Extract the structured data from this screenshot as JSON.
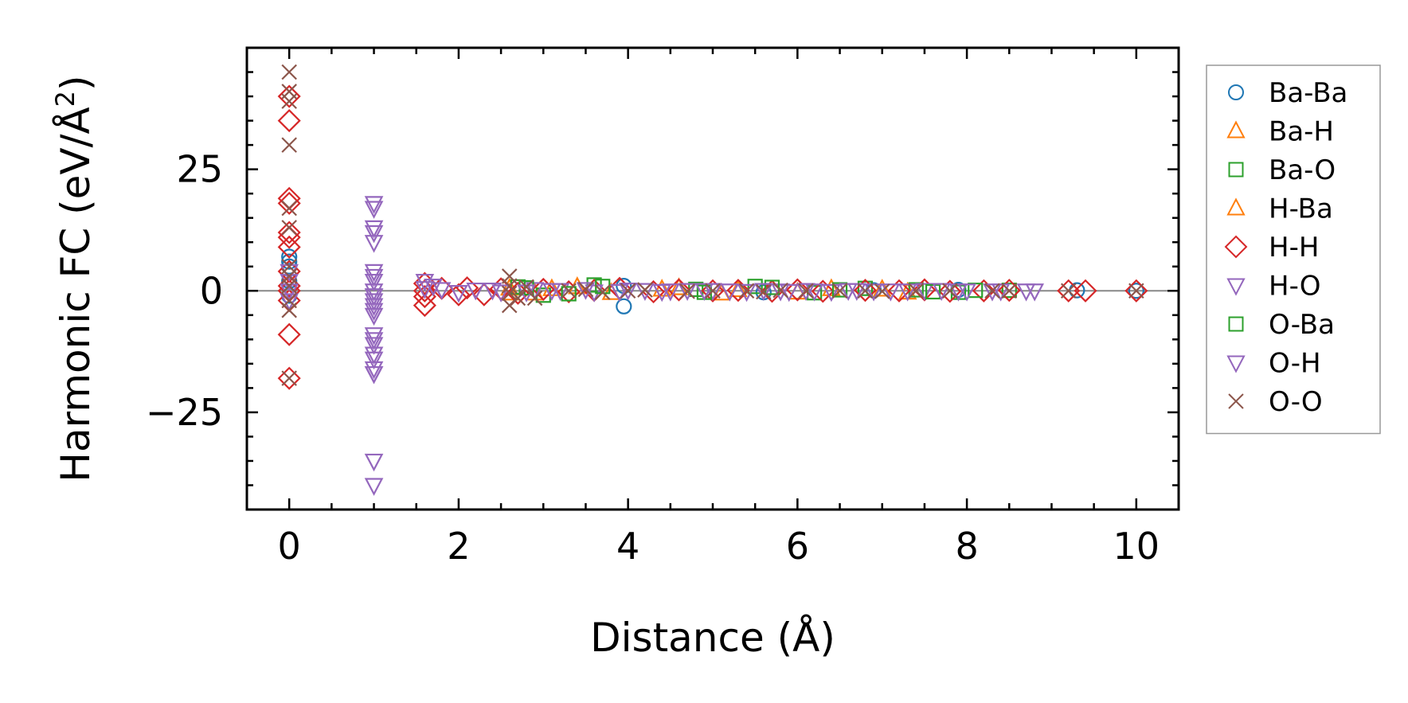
{
  "chart_data": {
    "type": "scatter",
    "title": "",
    "xlabel": "Distance (Å)",
    "ylabel_prefix": "Harmonic FC (eV/Å",
    "ylabel_sup": "2",
    "ylabel_suffix": ")",
    "xlim": [
      -0.5,
      10.5
    ],
    "ylim": [
      -45,
      50
    ],
    "xticks": [
      0,
      2,
      4,
      6,
      8,
      10
    ],
    "xtick_labels": [
      "0",
      "2",
      "4",
      "6",
      "8",
      "10"
    ],
    "yticks": [
      -25,
      0,
      25
    ],
    "ytick_labels": [
      "−25",
      "0",
      "25"
    ],
    "grid": false,
    "zero_line": true,
    "legend_position": "outside-right",
    "series": [
      {
        "name": "Ba-Ba",
        "marker": "circle",
        "color": "#1f77b4",
        "points": [
          [
            0,
            7
          ],
          [
            0,
            6
          ],
          [
            0,
            5
          ],
          [
            0,
            2
          ],
          [
            0,
            -1
          ],
          [
            3.95,
            1
          ],
          [
            3.95,
            -3.2
          ],
          [
            5.6,
            -0.3
          ],
          [
            6.9,
            0.1
          ],
          [
            7.9,
            0.2
          ],
          [
            9.3,
            0.1
          ],
          [
            10,
            0
          ]
        ]
      },
      {
        "name": "Ba-H",
        "marker": "triangle-up",
        "color": "#ff7f0e",
        "points": [
          [
            2.6,
            0.5
          ],
          [
            2.9,
            -0.5
          ],
          [
            3.4,
            0.8
          ],
          [
            4.4,
            0.3
          ],
          [
            5.1,
            -0.5
          ],
          [
            6.4,
            0.4
          ],
          [
            7.3,
            -0.3
          ]
        ]
      },
      {
        "name": "Ba-O",
        "marker": "square",
        "color": "#2ca02c",
        "points": [
          [
            2.7,
            0.8
          ],
          [
            3.0,
            -0.9
          ],
          [
            3.6,
            1.2
          ],
          [
            4.8,
            0.3
          ],
          [
            5.5,
            0.9
          ],
          [
            6.2,
            -0.4
          ],
          [
            6.8,
            0.5
          ],
          [
            7.4,
            0.2
          ],
          [
            7.9,
            -0.3
          ],
          [
            8.5,
            0.1
          ]
        ]
      },
      {
        "name": "H-Ba",
        "marker": "triangle-up",
        "color": "#ff7f0e",
        "points": [
          [
            2.6,
            -0.5
          ],
          [
            3.1,
            0.4
          ],
          [
            3.8,
            -0.4
          ],
          [
            4.6,
            0.6
          ],
          [
            5.3,
            0.2
          ],
          [
            6.0,
            -0.3
          ],
          [
            7.0,
            0.3
          ]
        ]
      },
      {
        "name": "H-H",
        "marker": "diamond",
        "color": "#d62728",
        "points": [
          [
            0,
            40
          ],
          [
            0,
            35
          ],
          [
            0,
            19
          ],
          [
            0,
            18
          ],
          [
            0,
            12
          ],
          [
            0,
            11
          ],
          [
            0,
            9
          ],
          [
            0,
            4
          ],
          [
            0,
            1
          ],
          [
            0,
            0
          ],
          [
            0,
            -2
          ],
          [
            0,
            -9
          ],
          [
            0,
            -18
          ],
          [
            1.6,
            1.5
          ],
          [
            1.6,
            0
          ],
          [
            1.6,
            -1.2
          ],
          [
            1.6,
            -3
          ],
          [
            1.8,
            0.5
          ],
          [
            2.0,
            -0.8
          ],
          [
            2.1,
            0.6
          ],
          [
            2.3,
            -0.8
          ],
          [
            2.5,
            0.4
          ],
          [
            2.7,
            -0.5
          ],
          [
            3.0,
            0.3
          ],
          [
            3.3,
            -0.2
          ],
          [
            3.6,
            0.1
          ],
          [
            3.9,
            0.5
          ],
          [
            4.3,
            -0.2
          ],
          [
            4.6,
            0.2
          ],
          [
            5.0,
            0
          ],
          [
            5.3,
            0.1
          ],
          [
            5.7,
            -0.1
          ],
          [
            6.0,
            0.2
          ],
          [
            6.3,
            -0.1
          ],
          [
            6.8,
            0.1
          ],
          [
            7.2,
            0
          ],
          [
            7.5,
            0.2
          ],
          [
            7.8,
            -0.1
          ],
          [
            8.2,
            0
          ],
          [
            8.5,
            0.1
          ],
          [
            9.2,
            0
          ],
          [
            9.4,
            0
          ],
          [
            10,
            0
          ]
        ]
      },
      {
        "name": "H-O",
        "marker": "triangle-down",
        "color": "#9467bd",
        "points": [
          [
            0,
            4
          ],
          [
            0,
            2
          ],
          [
            0,
            0
          ],
          [
            0,
            -2
          ],
          [
            1.0,
            18
          ],
          [
            1.0,
            13
          ],
          [
            1.0,
            10
          ],
          [
            1.0,
            4
          ],
          [
            1.0,
            2
          ],
          [
            1.0,
            0
          ],
          [
            1.0,
            -1
          ],
          [
            1.0,
            -2
          ],
          [
            1.0,
            -3
          ],
          [
            1.0,
            -4
          ],
          [
            1.0,
            -9
          ],
          [
            1.0,
            -11
          ],
          [
            1.0,
            -13
          ],
          [
            1.0,
            -16
          ],
          [
            1.0,
            -17
          ],
          [
            1.0,
            -35
          ],
          [
            1.0,
            -40
          ],
          [
            1.6,
            2
          ],
          [
            1.6,
            0.5
          ],
          [
            1.8,
            0.3
          ],
          [
            2.2,
            0.2
          ],
          [
            2.5,
            -0.2
          ],
          [
            2.9,
            0.3
          ],
          [
            3.2,
            0.1
          ],
          [
            3.6,
            -0.2
          ],
          [
            4.0,
            0.2
          ],
          [
            4.4,
            -0.1
          ],
          [
            4.7,
            0.1
          ],
          [
            5.0,
            0.1
          ],
          [
            5.4,
            -0.1
          ],
          [
            5.8,
            0
          ],
          [
            6.1,
            0.1
          ],
          [
            6.4,
            -0.1
          ],
          [
            6.7,
            0.1
          ],
          [
            7.1,
            0
          ],
          [
            7.5,
            0.1
          ],
          [
            7.9,
            0
          ],
          [
            8.3,
            0
          ],
          [
            8.7,
            0
          ],
          [
            8.8,
            0
          ]
        ]
      },
      {
        "name": "O-Ba",
        "marker": "square",
        "color": "#2ca02c",
        "points": [
          [
            2.8,
            0.6
          ],
          [
            3.3,
            -0.6
          ],
          [
            3.7,
            0.9
          ],
          [
            4.9,
            -0.3
          ],
          [
            5.7,
            0.7
          ],
          [
            6.5,
            0.2
          ],
          [
            7.6,
            -0.2
          ],
          [
            8.1,
            0.1
          ]
        ]
      },
      {
        "name": "O-H",
        "marker": "triangle-down",
        "color": "#9467bd",
        "points": [
          [
            1.0,
            17
          ],
          [
            1.0,
            12
          ],
          [
            1.0,
            3
          ],
          [
            1.0,
            -1
          ],
          [
            1.0,
            -5
          ],
          [
            1.0,
            -10
          ],
          [
            1.0,
            -14
          ],
          [
            1.0,
            -17
          ],
          [
            1.7,
            1
          ],
          [
            2.0,
            -0.3
          ],
          [
            2.4,
            0.2
          ],
          [
            2.8,
            -0.2
          ],
          [
            3.1,
            0.1
          ],
          [
            3.5,
            0.3
          ],
          [
            3.9,
            -0.1
          ],
          [
            4.2,
            0.1
          ],
          [
            4.5,
            0
          ],
          [
            4.9,
            0.1
          ],
          [
            5.2,
            0
          ],
          [
            5.6,
            0.1
          ],
          [
            5.9,
            -0.1
          ],
          [
            6.2,
            0
          ],
          [
            6.6,
            0.1
          ],
          [
            6.9,
            0
          ],
          [
            7.3,
            0
          ],
          [
            7.7,
            0.1
          ],
          [
            8.0,
            0
          ],
          [
            8.4,
            0
          ]
        ]
      },
      {
        "name": "O-O",
        "marker": "x",
        "color": "#8c564b",
        "points": [
          [
            0,
            45
          ],
          [
            0,
            41
          ],
          [
            0,
            39
          ],
          [
            0,
            30
          ],
          [
            0,
            17
          ],
          [
            0,
            13
          ],
          [
            0,
            5
          ],
          [
            0,
            3
          ],
          [
            0,
            1
          ],
          [
            0,
            -2
          ],
          [
            0,
            -4
          ],
          [
            0,
            -18
          ],
          [
            2.6,
            3
          ],
          [
            2.6,
            1
          ],
          [
            2.6,
            -0.5
          ],
          [
            2.6,
            -3
          ],
          [
            2.7,
            -1.5
          ],
          [
            2.8,
            0.8
          ],
          [
            2.9,
            -1.5
          ],
          [
            3.3,
            0
          ],
          [
            3.5,
            0.3
          ],
          [
            3.7,
            -0.3
          ],
          [
            4.0,
            0
          ],
          [
            4.2,
            0.2
          ],
          [
            4.7,
            -0.1
          ],
          [
            5.0,
            0
          ],
          [
            5.4,
            0
          ],
          [
            5.6,
            -0.2
          ],
          [
            5.8,
            0.1
          ],
          [
            6.1,
            0
          ],
          [
            6.5,
            0
          ],
          [
            6.8,
            0
          ],
          [
            7.0,
            -0.1
          ],
          [
            7.4,
            0
          ],
          [
            7.8,
            0
          ],
          [
            8.3,
            0
          ],
          [
            8.5,
            0
          ],
          [
            9.2,
            0
          ],
          [
            10,
            0
          ]
        ]
      }
    ]
  }
}
